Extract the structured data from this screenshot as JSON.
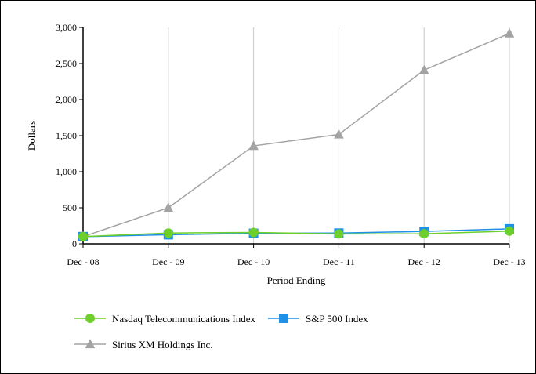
{
  "chart_data": {
    "type": "line",
    "title": "",
    "xlabel": "Period Ending",
    "ylabel": "Dollars",
    "categories": [
      "Dec - 08",
      "Dec - 09",
      "Dec - 10",
      "Dec - 11",
      "Dec - 12",
      "Dec - 13"
    ],
    "ylim": [
      0,
      3000
    ],
    "yticks": [
      0,
      500,
      1000,
      1500,
      2000,
      2500,
      3000
    ],
    "ytick_labels": [
      "0",
      "500",
      "1,000",
      "1,500",
      "2,000",
      "2,500",
      "3,000"
    ],
    "grid": "vertical",
    "legend_position": "bottom",
    "series": [
      {
        "name": "Nasdaq Telecommunications Index",
        "color": "#6ccf2a",
        "marker": "circle",
        "values": [
          100,
          150,
          158,
          137,
          140,
          176
        ]
      },
      {
        "name": "S&P 500 Index",
        "color": "#1e90e6",
        "marker": "square",
        "values": [
          100,
          126,
          146,
          149,
          172,
          208
        ]
      },
      {
        "name": "Sirius XM Holdings Inc.",
        "color": "#a3a3a3",
        "marker": "triangle",
        "values": [
          100,
          500,
          1358,
          1517,
          2408,
          2917
        ]
      }
    ]
  }
}
